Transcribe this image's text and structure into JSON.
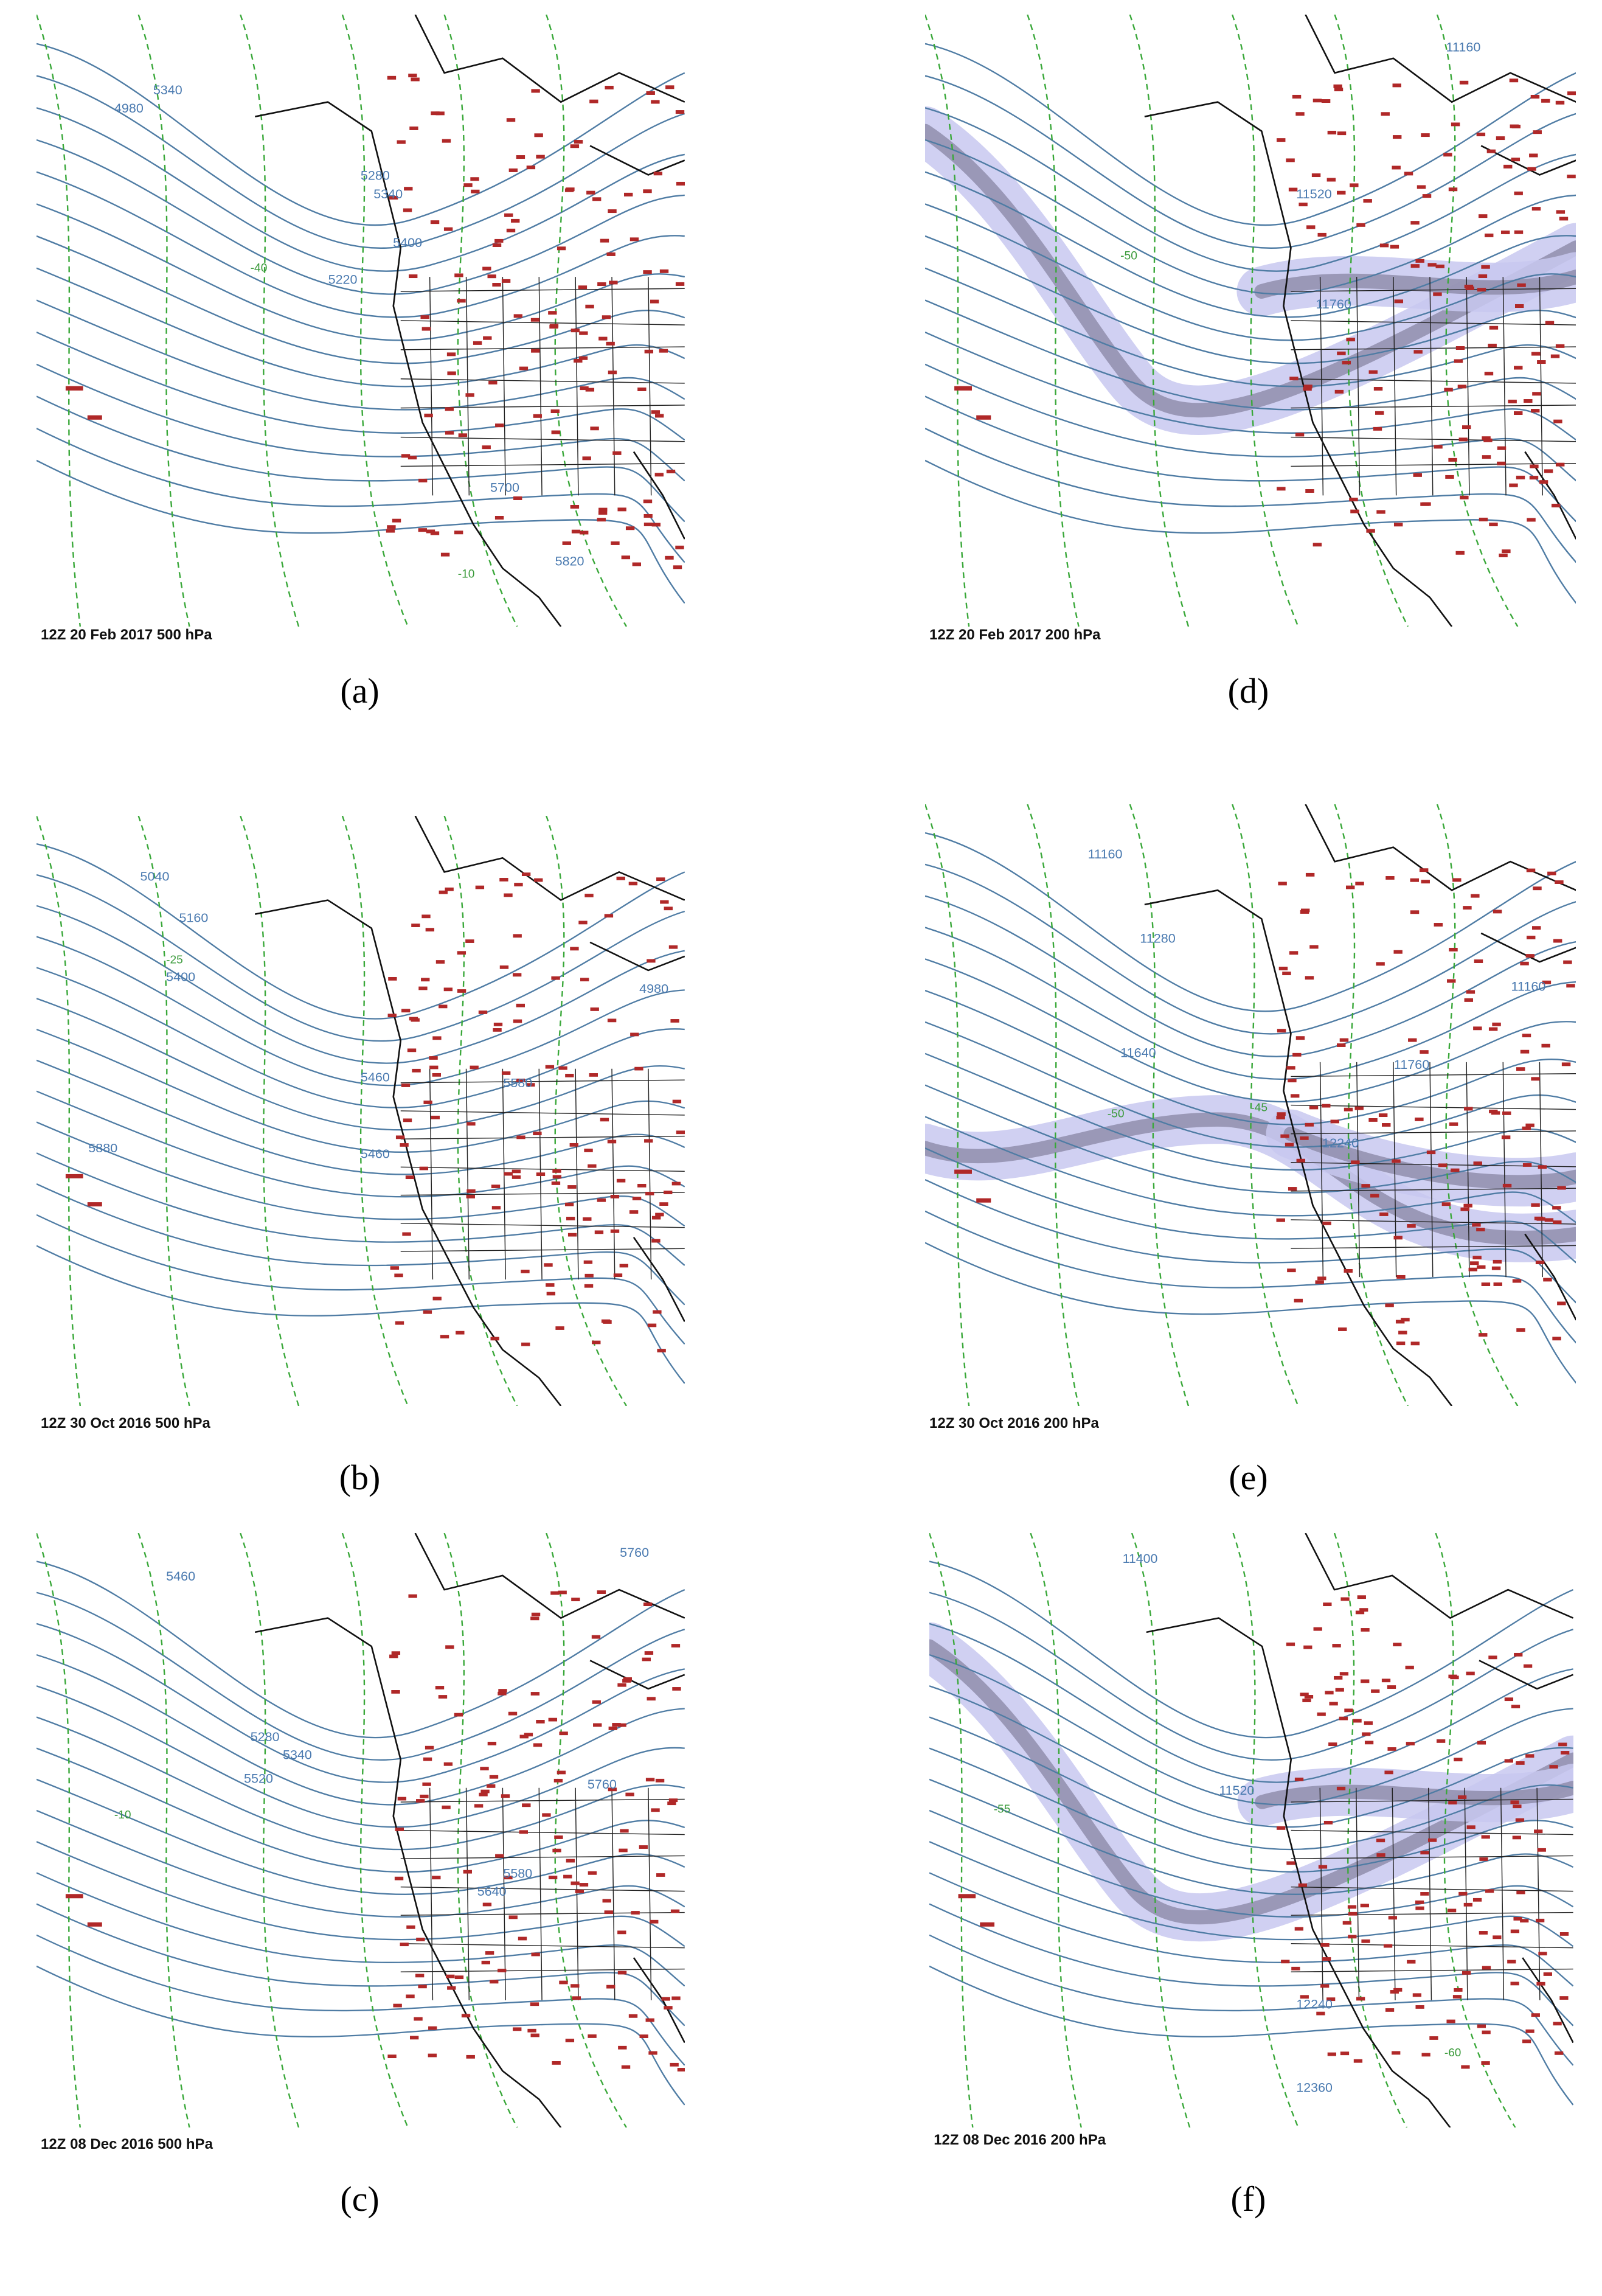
{
  "panels": [
    {
      "footer": "12Z 20 Feb 2017  500 hPa",
      "caption": "(a)",
      "level": 500,
      "contour_labels": [
        "4980",
        "5340",
        "5280",
        "5340",
        "5400",
        "5220",
        "5700",
        "5820",
        "-40",
        "-10"
      ]
    },
    {
      "footer": "12Z 20 Feb 2017  200 hPa",
      "caption": "(d)",
      "level": 200,
      "contour_labels": [
        "11160",
        "11520",
        "11760",
        "-50"
      ]
    },
    {
      "footer": "12Z 30 Oct 2016  500 hPa",
      "caption": "(b)",
      "level": 500,
      "contour_labels": [
        "5040",
        "5160",
        "5400",
        "4980",
        "5580",
        "5460",
        "5460",
        "5880",
        "-25"
      ]
    },
    {
      "footer": "12Z 30 Oct 2016  200 hPa",
      "caption": "(e)",
      "level": 200,
      "contour_labels": [
        "11160",
        "11280",
        "11640",
        "11160",
        "11760",
        "12240",
        "-50",
        "-45"
      ]
    },
    {
      "footer": "12Z 08 Dec 2016  500 hPa",
      "caption": "(c)",
      "level": 500,
      "contour_labels": [
        "5460",
        "5280",
        "5340",
        "5520",
        "5640",
        "5580",
        "5760",
        "5760",
        "-10"
      ]
    },
    {
      "footer": "12Z 08 Dec 2016  200 hPa",
      "caption": "(f)",
      "level": 200,
      "contour_labels": [
        "11400",
        "11520",
        "12240",
        "12360",
        "-55",
        "-60"
      ]
    }
  ]
}
